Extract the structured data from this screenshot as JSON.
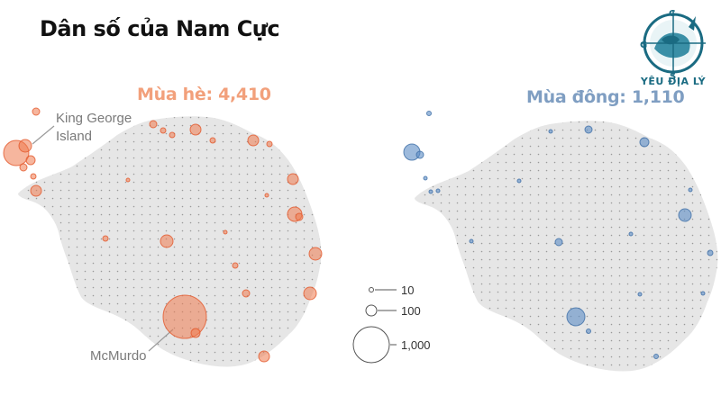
{
  "title": "Dân số của Nam Cực",
  "summer": {
    "label": "Mùa hè: 4,410",
    "color": "#e8673c"
  },
  "winter": {
    "label": "Mùa đông: 1,110",
    "color": "#5b8cc4"
  },
  "callouts": {
    "king_george": "King George\nIsland",
    "mcmurdo": "McMurdo"
  },
  "legend": [
    {
      "label": "10",
      "value": 10
    },
    {
      "label": "100",
      "value": 100
    },
    {
      "label": "1,000",
      "value": 1000
    }
  ],
  "logo": {
    "text": "YÊU ĐỊA LÝ",
    "icon": "compass-globe-icon",
    "letters": [
      "C",
      "G",
      "S"
    ]
  }
}
